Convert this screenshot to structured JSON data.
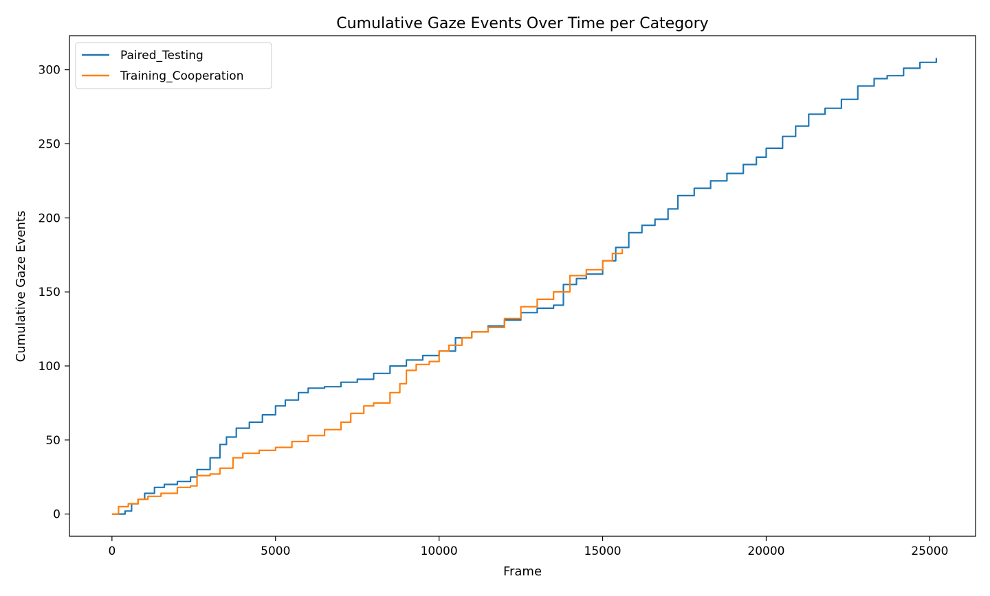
{
  "chart_data": {
    "type": "line",
    "title": "Cumulative Gaze Events Over Time per Category",
    "xlabel": "Frame",
    "ylabel": "Cumulative Gaze Events",
    "xlim": [
      -1300,
      26400
    ],
    "ylim": [
      -15,
      323
    ],
    "xticks": [
      0,
      5000,
      10000,
      15000,
      20000,
      25000
    ],
    "yticks": [
      0,
      50,
      100,
      150,
      200,
      250,
      300
    ],
    "grid": false,
    "legend": "top-left",
    "series": [
      {
        "name": "Paired_Testing",
        "color": "#1f77b4",
        "x": [
          0,
          400,
          600,
          800,
          1000,
          1300,
          1600,
          2000,
          2400,
          2600,
          3000,
          3300,
          3500,
          3800,
          4200,
          4600,
          5000,
          5300,
          5700,
          6000,
          6500,
          7000,
          7500,
          8000,
          8500,
          9000,
          9500,
          10000,
          10500,
          11000,
          11500,
          12000,
          12500,
          13000,
          13500,
          13800,
          14200,
          14500,
          15000,
          15400,
          15800,
          16200,
          16600,
          17000,
          17300,
          17800,
          18300,
          18800,
          19300,
          19700,
          20000,
          20500,
          20900,
          21300,
          21800,
          22300,
          22800,
          23300,
          23700,
          24200,
          24700,
          25200
        ],
        "y": [
          0,
          2,
          7,
          10,
          14,
          18,
          20,
          22,
          25,
          30,
          38,
          47,
          52,
          58,
          62,
          67,
          73,
          77,
          82,
          85,
          86,
          89,
          91,
          95,
          100,
          104,
          107,
          110,
          119,
          123,
          127,
          131,
          136,
          139,
          141,
          155,
          159,
          162,
          171,
          180,
          190,
          195,
          199,
          206,
          215,
          220,
          225,
          230,
          236,
          241,
          247,
          255,
          262,
          270,
          274,
          280,
          289,
          294,
          296,
          301,
          305,
          308
        ]
      },
      {
        "name": "Training_Cooperation",
        "color": "#ff7f0e",
        "x": [
          0,
          200,
          500,
          800,
          1100,
          1500,
          2000,
          2400,
          2600,
          3000,
          3300,
          3700,
          4000,
          4500,
          5000,
          5500,
          6000,
          6500,
          7000,
          7300,
          7700,
          8000,
          8500,
          8800,
          9000,
          9300,
          9700,
          10000,
          10300,
          10700,
          11000,
          11500,
          12000,
          12500,
          13000,
          13500,
          14000,
          14500,
          15000,
          15300,
          15600
        ],
        "y": [
          0,
          5,
          7,
          10,
          12,
          14,
          18,
          19,
          26,
          27,
          31,
          38,
          41,
          43,
          45,
          49,
          53,
          57,
          62,
          68,
          73,
          75,
          82,
          88,
          97,
          101,
          103,
          110,
          114,
          119,
          123,
          126,
          132,
          140,
          145,
          150,
          161,
          165,
          171,
          176,
          179
        ]
      }
    ]
  }
}
